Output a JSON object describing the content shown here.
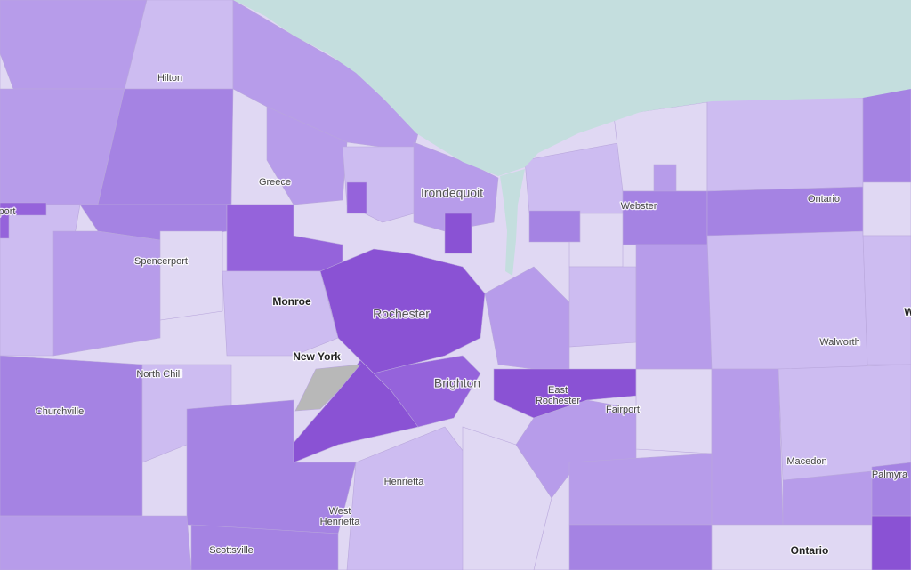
{
  "map": {
    "labels": [
      {
        "lines": [
          "port"
        ],
        "style": "small"
      },
      {
        "lines": [
          "Hilton"
        ],
        "style": "small"
      },
      {
        "lines": [
          "Greece"
        ],
        "style": "small"
      },
      {
        "lines": [
          "Irondequoit"
        ],
        "style": "large"
      },
      {
        "lines": [
          "Webster"
        ],
        "style": "small"
      },
      {
        "lines": [
          "Ontario"
        ],
        "style": "small"
      },
      {
        "lines": [
          "Spencerport"
        ],
        "style": "small"
      },
      {
        "lines": [
          "Monroe"
        ],
        "style": "bold"
      },
      {
        "lines": [
          "Rochester"
        ],
        "style": "large"
      },
      {
        "lines": [
          "New York"
        ],
        "style": "bold"
      },
      {
        "lines": [
          "Walworth"
        ],
        "style": "small"
      },
      {
        "lines": [
          "North Chili"
        ],
        "style": "small"
      },
      {
        "lines": [
          "Brighton"
        ],
        "style": "large"
      },
      {
        "lines": [
          "East",
          "Rochester"
        ],
        "style": "small"
      },
      {
        "lines": [
          "Fairport"
        ],
        "style": "small"
      },
      {
        "lines": [
          "Churchville"
        ],
        "style": "small"
      },
      {
        "lines": [
          "Macedon"
        ],
        "style": "small"
      },
      {
        "lines": [
          "Henrietta"
        ],
        "style": "small"
      },
      {
        "lines": [
          "West",
          "Henrietta"
        ],
        "style": "small"
      },
      {
        "lines": [
          "Scottsville"
        ],
        "style": "small"
      },
      {
        "lines": [
          "Ontario"
        ],
        "style": "bold"
      },
      {
        "lines": [
          "Palmyra"
        ],
        "style": "small"
      },
      {
        "lines": [
          "W"
        ],
        "style": "bold"
      }
    ]
  }
}
